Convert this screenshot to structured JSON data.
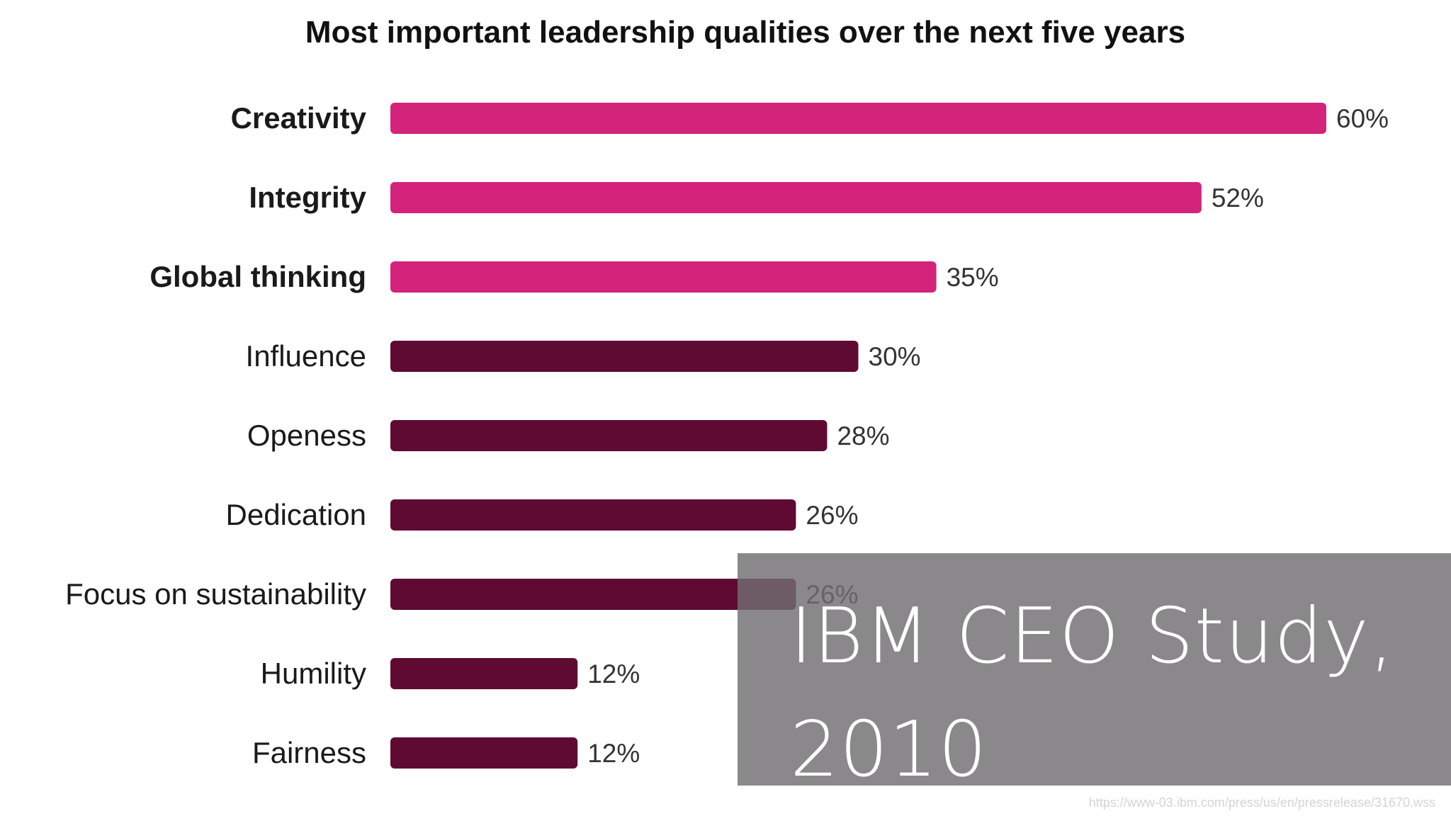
{
  "chart_data": {
    "type": "bar",
    "orientation": "horizontal",
    "title": "Most important leadership qualities over the next five years",
    "categories": [
      "Creativity",
      "Integrity",
      "Global thinking",
      "Influence",
      "Openess",
      "Dedication",
      "Focus on sustainability",
      "Humility",
      "Fairness"
    ],
    "values": [
      60,
      52,
      35,
      30,
      28,
      26,
      26,
      12,
      12
    ],
    "value_labels": [
      "60%",
      "52%",
      "35%",
      "30%",
      "28%",
      "26%",
      "26%",
      "12%",
      "12%"
    ],
    "highlighted": [
      true,
      true,
      true,
      false,
      false,
      false,
      false,
      false,
      false
    ],
    "colors": {
      "highlight": "#d4237a",
      "default": "#5e0a33"
    },
    "xlabel": "",
    "ylabel": "",
    "grid": false,
    "legend": "none"
  },
  "overlay": {
    "title": "IBM CEO Study,\n2010"
  },
  "source": "https://www-03.ibm.com/press/us/en/pressrelease/31670.wss"
}
